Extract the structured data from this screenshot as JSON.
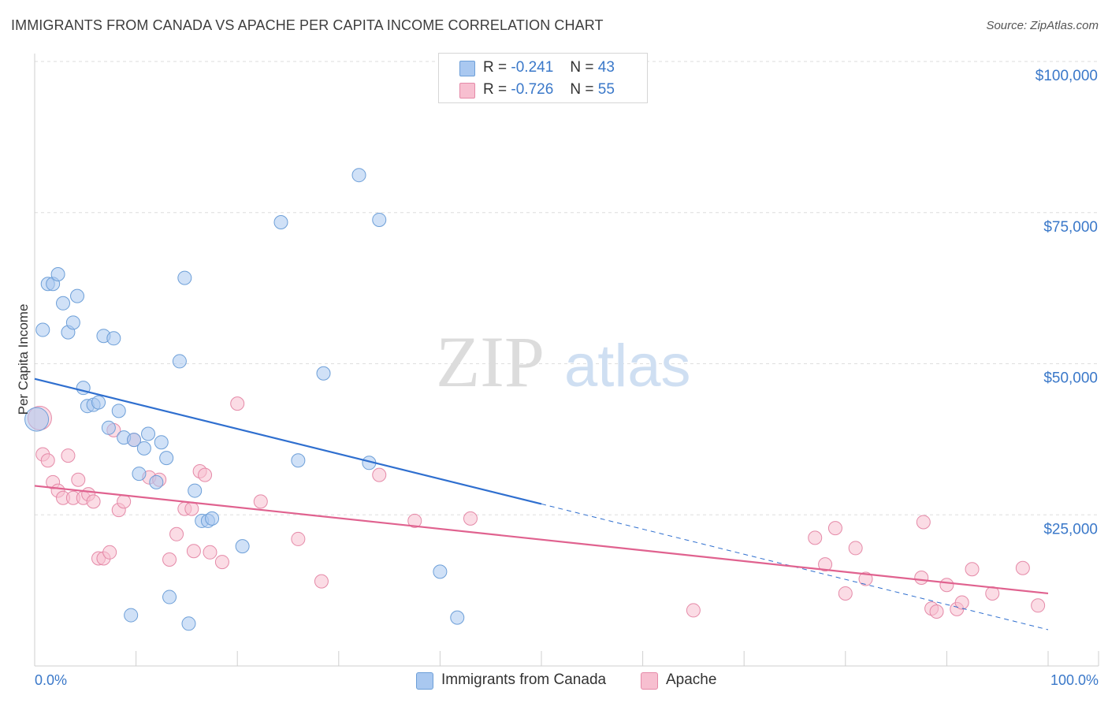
{
  "title": "IMMIGRANTS FROM CANADA VS APACHE PER CAPITA INCOME CORRELATION CHART",
  "source": "Source: ZipAtlas.com",
  "watermark": {
    "zip": "ZIP",
    "atlas": "atlas"
  },
  "stats": [
    {
      "r_label": "R =",
      "r_value": "-0.241",
      "n_label": "N =",
      "n_value": "43",
      "color": "#a9c8f0",
      "border": "#6d9fd8"
    },
    {
      "r_label": "R =",
      "r_value": "-0.726",
      "n_label": "N =",
      "n_value": "55",
      "color": "#f7bfd0",
      "border": "#e58aa8"
    }
  ],
  "legend": [
    {
      "label": "Immigrants from Canada",
      "color": "#a9c8f0",
      "border": "#6d9fd8"
    },
    {
      "label": "Apache",
      "color": "#f7bfd0",
      "border": "#e58aa8"
    }
  ],
  "chart_data": {
    "type": "scatter",
    "ylabel": "Per Capita Income",
    "xlabel": "",
    "xlim": [
      0,
      100
    ],
    "ylim": [
      0,
      100000
    ],
    "x_tick_labels": [
      "0.0%",
      "100.0%"
    ],
    "y_ticks": [
      25000,
      50000,
      75000,
      100000
    ],
    "y_tick_labels": [
      "$25,000",
      "$50,000",
      "$75,000",
      "$100,000"
    ],
    "grid": true,
    "series": [
      {
        "name": "Immigrants from Canada",
        "color": "#a9c8f0",
        "stroke": "#6d9fd8",
        "line_color": "#2f6fcf",
        "trend": {
          "x0": 0,
          "y0": 47500,
          "x1": 50,
          "y1": 26800,
          "x_dash_end": 100,
          "y_dash_end": 6000
        },
        "points": [
          [
            0.2,
            40800,
            "big"
          ],
          [
            0.8,
            55600
          ],
          [
            1.3,
            63200
          ],
          [
            1.8,
            63200
          ],
          [
            2.3,
            64800
          ],
          [
            2.8,
            60000
          ],
          [
            3.3,
            55200
          ],
          [
            3.8,
            56800
          ],
          [
            4.2,
            61200
          ],
          [
            4.8,
            46000
          ],
          [
            5.2,
            43000
          ],
          [
            5.8,
            43200
          ],
          [
            6.3,
            43600
          ],
          [
            6.8,
            54600
          ],
          [
            7.3,
            39400
          ],
          [
            7.8,
            54200
          ],
          [
            8.3,
            42200
          ],
          [
            8.8,
            37800
          ],
          [
            9.5,
            8400
          ],
          [
            9.8,
            37400
          ],
          [
            10.3,
            31800
          ],
          [
            10.8,
            36000
          ],
          [
            11.2,
            38400
          ],
          [
            12.0,
            30400
          ],
          [
            12.5,
            37000
          ],
          [
            13.0,
            34400
          ],
          [
            13.3,
            11400
          ],
          [
            14.3,
            50400
          ],
          [
            14.8,
            64200
          ],
          [
            15.2,
            7000
          ],
          [
            15.8,
            29000
          ],
          [
            16.5,
            24000
          ],
          [
            17.1,
            24000
          ],
          [
            17.5,
            24400
          ],
          [
            20.5,
            19800
          ],
          [
            24.3,
            73400
          ],
          [
            26.0,
            34000
          ],
          [
            28.5,
            48400
          ],
          [
            32.0,
            81200
          ],
          [
            33.0,
            33600
          ],
          [
            34.0,
            73800
          ],
          [
            40.0,
            15600
          ],
          [
            41.7,
            8000
          ]
        ]
      },
      {
        "name": "Apache",
        "color": "#f7bfd0",
        "stroke": "#e58aa8",
        "line_color": "#e0628f",
        "trend": {
          "x0": 0,
          "y0": 29800,
          "x1": 100,
          "y1": 12000
        },
        "points": [
          [
            0.5,
            41000,
            "big"
          ],
          [
            0.8,
            35000
          ],
          [
            1.3,
            34000
          ],
          [
            1.8,
            30400
          ],
          [
            2.3,
            29000
          ],
          [
            2.8,
            27800
          ],
          [
            3.3,
            34800
          ],
          [
            3.8,
            27800
          ],
          [
            4.3,
            30800
          ],
          [
            4.8,
            27800
          ],
          [
            5.3,
            28400
          ],
          [
            5.8,
            27200
          ],
          [
            6.3,
            17800
          ],
          [
            6.8,
            17800
          ],
          [
            7.4,
            18800
          ],
          [
            7.8,
            39000
          ],
          [
            8.3,
            25800
          ],
          [
            8.8,
            27200
          ],
          [
            9.8,
            37400
          ],
          [
            11.3,
            31200
          ],
          [
            12.3,
            30800
          ],
          [
            13.3,
            17600
          ],
          [
            14.0,
            21800
          ],
          [
            14.8,
            26000
          ],
          [
            15.5,
            26000
          ],
          [
            15.7,
            19000
          ],
          [
            16.3,
            32200
          ],
          [
            16.8,
            31600
          ],
          [
            17.3,
            18800
          ],
          [
            18.5,
            17200
          ],
          [
            20.0,
            43400
          ],
          [
            22.3,
            27200
          ],
          [
            26.0,
            21000
          ],
          [
            28.3,
            14000
          ],
          [
            34.0,
            31600
          ],
          [
            37.5,
            24000
          ],
          [
            43.0,
            24400
          ],
          [
            65.0,
            9200
          ],
          [
            77.0,
            21200
          ],
          [
            78.0,
            16800
          ],
          [
            79.0,
            22800
          ],
          [
            80.0,
            12000
          ],
          [
            81.0,
            19500
          ],
          [
            82.0,
            14400
          ],
          [
            87.5,
            14600
          ],
          [
            87.7,
            23800
          ],
          [
            88.5,
            9500
          ],
          [
            89.0,
            9000
          ],
          [
            90.0,
            13400
          ],
          [
            91.0,
            9400
          ],
          [
            91.5,
            10500
          ],
          [
            92.5,
            16000
          ],
          [
            94.5,
            12000
          ],
          [
            97.5,
            16200
          ],
          [
            99.0,
            10000
          ]
        ]
      }
    ]
  }
}
